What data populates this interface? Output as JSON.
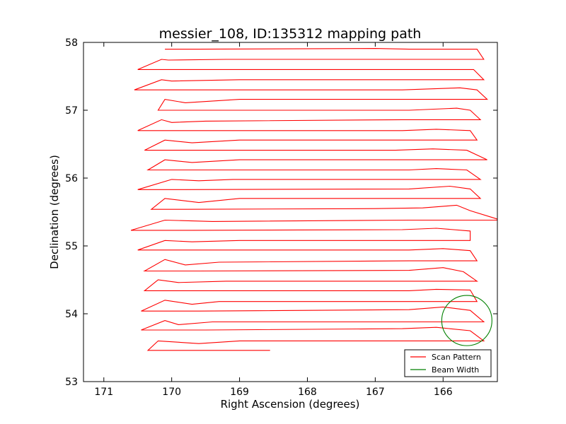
{
  "chart_data": {
    "type": "line",
    "title": "messier_108, ID:135312 mapping path",
    "xlabel": "Right Ascension (degrees)",
    "ylabel": "Declination (degrees)",
    "xlim": [
      171.3,
      165.2
    ],
    "ylim": [
      53,
      58
    ],
    "x_ticks": [
      "171",
      "170",
      "169",
      "168",
      "167",
      "166"
    ],
    "x_tick_values": [
      171,
      170,
      169,
      168,
      167,
      166
    ],
    "y_ticks": [
      "53",
      "54",
      "55",
      "56",
      "57",
      "58"
    ],
    "y_tick_values": [
      53,
      54,
      55,
      56,
      57,
      58
    ],
    "grid": false,
    "legend": {
      "location": "lower-right",
      "entries": [
        {
          "label": "Scan Pattern",
          "color": "#ff0000"
        },
        {
          "label": "Beam Width",
          "color": "#008000"
        }
      ]
    },
    "series": [
      {
        "name": "Scan Pattern",
        "color": "#ff0000",
        "points": [
          [
            168.55,
            53.46
          ],
          [
            170.35,
            53.46
          ],
          [
            170.2,
            53.6
          ],
          [
            169.6,
            53.56
          ],
          [
            169.0,
            53.6
          ],
          [
            165.4,
            53.6
          ],
          [
            165.6,
            53.75
          ],
          [
            166.1,
            53.8
          ],
          [
            166.6,
            53.78
          ],
          [
            169.5,
            53.76
          ],
          [
            170.45,
            53.76
          ],
          [
            170.1,
            53.9
          ],
          [
            169.9,
            53.84
          ],
          [
            169.4,
            53.88
          ],
          [
            166.6,
            53.88
          ],
          [
            165.4,
            53.88
          ],
          [
            165.6,
            54.05
          ],
          [
            166.0,
            54.1
          ],
          [
            166.5,
            54.06
          ],
          [
            169.6,
            54.04
          ],
          [
            170.45,
            54.04
          ],
          [
            170.1,
            54.2
          ],
          [
            169.7,
            54.14
          ],
          [
            169.3,
            54.18
          ],
          [
            166.6,
            54.18
          ],
          [
            165.5,
            54.18
          ],
          [
            165.6,
            54.35
          ],
          [
            166.1,
            54.36
          ],
          [
            166.5,
            54.34
          ],
          [
            169.3,
            54.34
          ],
          [
            170.4,
            54.34
          ],
          [
            170.2,
            54.5
          ],
          [
            169.9,
            54.46
          ],
          [
            169.2,
            54.48
          ],
          [
            166.6,
            54.48
          ],
          [
            165.5,
            54.48
          ],
          [
            165.7,
            54.62
          ],
          [
            166.0,
            54.68
          ],
          [
            166.5,
            54.64
          ],
          [
            169.6,
            54.63
          ],
          [
            170.4,
            54.63
          ],
          [
            170.1,
            54.8
          ],
          [
            169.8,
            54.72
          ],
          [
            169.3,
            54.76
          ],
          [
            166.5,
            54.78
          ],
          [
            165.5,
            54.78
          ],
          [
            165.6,
            54.93
          ],
          [
            166.0,
            54.96
          ],
          [
            166.5,
            54.94
          ],
          [
            169.5,
            54.94
          ],
          [
            170.5,
            54.94
          ],
          [
            170.1,
            55.08
          ],
          [
            169.7,
            55.06
          ],
          [
            169.0,
            55.08
          ],
          [
            166.5,
            55.08
          ],
          [
            165.6,
            55.08
          ],
          [
            165.6,
            55.22
          ],
          [
            166.1,
            55.26
          ],
          [
            166.6,
            55.24
          ],
          [
            169.7,
            55.23
          ],
          [
            170.6,
            55.23
          ],
          [
            170.1,
            55.38
          ],
          [
            169.4,
            55.36
          ],
          [
            166.5,
            55.38
          ],
          [
            165.15,
            55.38
          ],
          [
            165.6,
            55.52
          ],
          [
            165.8,
            55.6
          ],
          [
            166.3,
            55.56
          ],
          [
            167.0,
            55.55
          ],
          [
            169.8,
            55.54
          ],
          [
            170.3,
            55.54
          ],
          [
            170.1,
            55.7
          ],
          [
            169.6,
            55.64
          ],
          [
            169.0,
            55.7
          ],
          [
            166.6,
            55.7
          ],
          [
            165.45,
            55.7
          ],
          [
            165.6,
            55.84
          ],
          [
            165.9,
            55.88
          ],
          [
            166.5,
            55.84
          ],
          [
            169.8,
            55.83
          ],
          [
            170.5,
            55.83
          ],
          [
            170.0,
            55.98
          ],
          [
            169.6,
            55.96
          ],
          [
            169.1,
            55.98
          ],
          [
            166.6,
            55.98
          ],
          [
            165.45,
            55.98
          ],
          [
            165.65,
            56.12
          ],
          [
            166.1,
            56.14
          ],
          [
            166.5,
            56.12
          ],
          [
            169.5,
            56.12
          ],
          [
            170.35,
            56.12
          ],
          [
            170.1,
            56.27
          ],
          [
            169.7,
            56.23
          ],
          [
            169.0,
            56.27
          ],
          [
            166.6,
            56.27
          ],
          [
            165.35,
            56.27
          ],
          [
            165.65,
            56.41
          ],
          [
            166.15,
            56.43
          ],
          [
            166.7,
            56.41
          ],
          [
            169.9,
            56.41
          ],
          [
            170.4,
            56.41
          ],
          [
            170.1,
            56.56
          ],
          [
            169.7,
            56.52
          ],
          [
            169.0,
            56.56
          ],
          [
            166.6,
            56.56
          ],
          [
            165.5,
            56.56
          ],
          [
            165.6,
            56.7
          ],
          [
            166.1,
            56.72
          ],
          [
            166.6,
            56.7
          ],
          [
            169.8,
            56.7
          ],
          [
            170.5,
            56.7
          ],
          [
            170.15,
            56.86
          ],
          [
            170.0,
            56.82
          ],
          [
            169.5,
            56.84
          ],
          [
            166.6,
            56.86
          ],
          [
            165.45,
            56.86
          ],
          [
            165.6,
            57.0
          ],
          [
            165.8,
            57.03
          ],
          [
            166.5,
            57.0
          ],
          [
            169.0,
            57.0
          ],
          [
            170.2,
            57.0
          ],
          [
            170.1,
            57.16
          ],
          [
            169.8,
            57.11
          ],
          [
            169.0,
            57.16
          ],
          [
            166.6,
            57.16
          ],
          [
            165.35,
            57.16
          ],
          [
            165.5,
            57.3
          ],
          [
            165.75,
            57.33
          ],
          [
            166.6,
            57.3
          ],
          [
            169.5,
            57.3
          ],
          [
            170.55,
            57.3
          ],
          [
            170.15,
            57.45
          ],
          [
            170.0,
            57.43
          ],
          [
            169.0,
            57.45
          ],
          [
            166.6,
            57.45
          ],
          [
            165.4,
            57.45
          ],
          [
            165.55,
            57.6
          ],
          [
            166.5,
            57.6
          ],
          [
            169.9,
            57.6
          ],
          [
            170.5,
            57.6
          ],
          [
            170.15,
            57.75
          ],
          [
            170.05,
            57.74
          ],
          [
            169.2,
            57.75
          ],
          [
            166.6,
            57.75
          ],
          [
            165.4,
            57.75
          ],
          [
            165.5,
            57.9
          ],
          [
            166.5,
            57.9
          ],
          [
            167.0,
            57.91
          ],
          [
            169.6,
            57.9
          ],
          [
            170.1,
            57.9
          ]
        ]
      },
      {
        "name": "Beam Width",
        "color": "#008000",
        "shape": "circle",
        "center": [
          165.65,
          53.9
        ],
        "radius_x_deg": 0.37,
        "radius_y_deg": 0.37
      }
    ]
  }
}
